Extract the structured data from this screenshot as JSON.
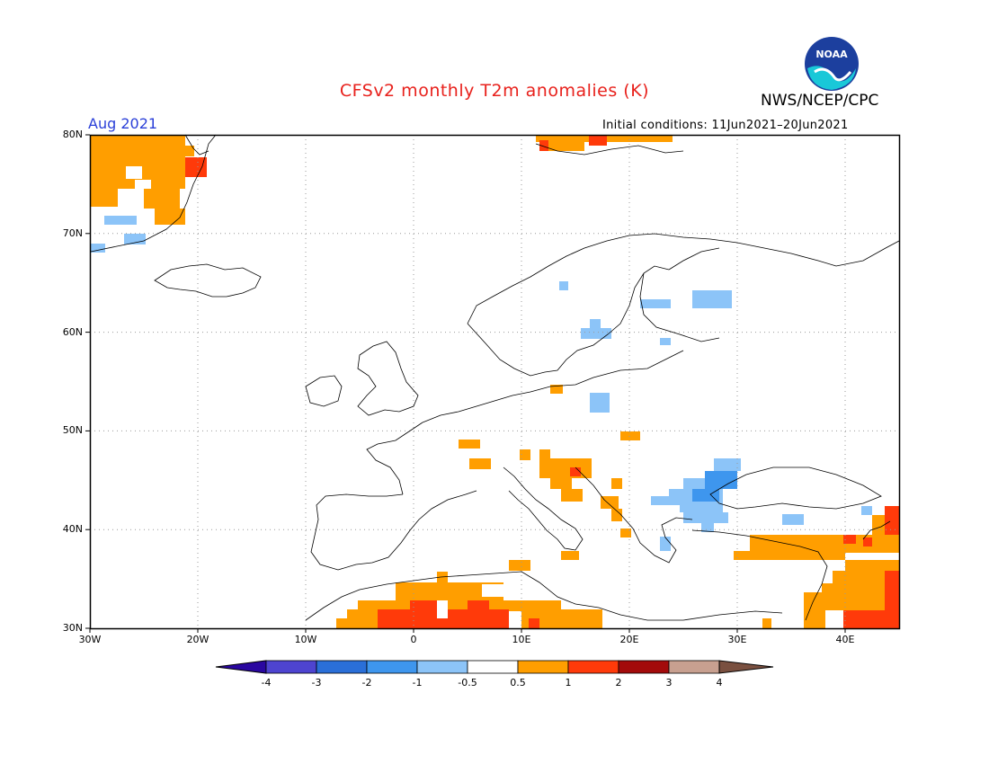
{
  "title": "CFSv2 monthly T2m anomalies (K)",
  "org": "NWS/NCEP/CPC",
  "period": "Aug 2021",
  "initial_conditions": "Initial conditions: 11Jun2021–20Jun2021",
  "logo": {
    "name": "noaa-logo",
    "text": "NOAA"
  },
  "map": {
    "lon_range": [
      -30,
      45
    ],
    "lat_range": [
      30,
      80
    ],
    "lat_labels": [
      "80N",
      "70N",
      "60N",
      "50N",
      "40N",
      "30N"
    ],
    "lon_labels": [
      "30W",
      "20W",
      "10W",
      "0",
      "10E",
      "20E",
      "30E",
      "40E"
    ]
  },
  "colorbar": {
    "labels": [
      "-4",
      "-3",
      "-2",
      "-1",
      "-0.5",
      "0.5",
      "1",
      "2",
      "3",
      "4"
    ],
    "colors": [
      "#2a07a0",
      "#4e44d0",
      "#2a6fd8",
      "#3e96ee",
      "#8cc4f8",
      "#ffffff",
      "#ff9e00",
      "#ff3a0a",
      "#a30b0b",
      "#c8a090",
      "#7a5040"
    ]
  }
}
